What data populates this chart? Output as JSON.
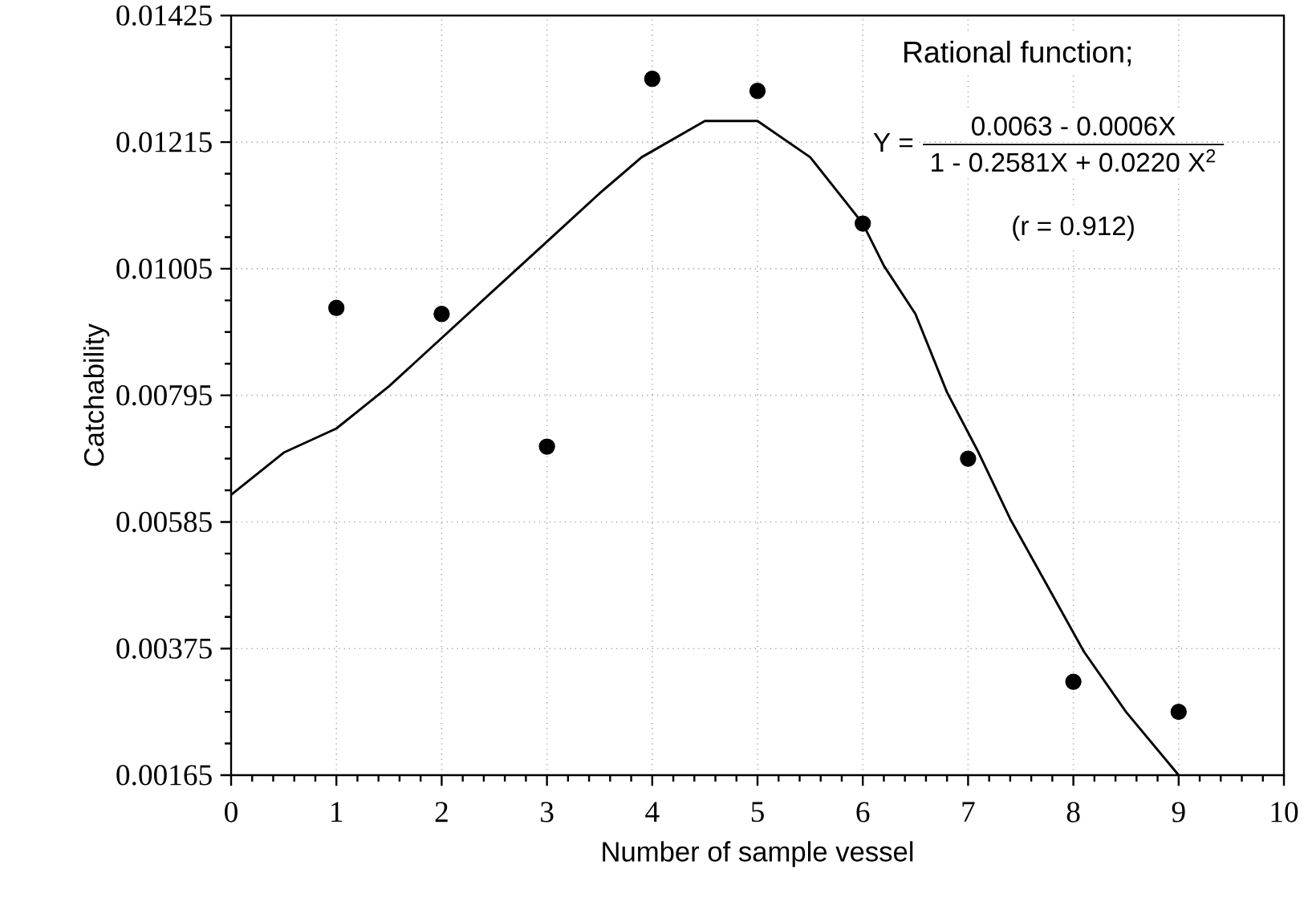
{
  "chart_data": {
    "type": "scatter",
    "xlabel": "Number of sample vessel",
    "ylabel": "Catchability",
    "xlim": [
      0,
      10
    ],
    "xticks": [
      0,
      1,
      2,
      3,
      4,
      5,
      6,
      7,
      8,
      9,
      10
    ],
    "ylim": [
      0.00165,
      0.01425
    ],
    "yticks": [
      0.00165,
      0.00375,
      0.00585,
      0.00795,
      0.01005,
      0.01215,
      0.01425
    ],
    "grid": true,
    "annotations": [
      "Rational function;",
      "Y =",
      "0.0063 - 0.0006X",
      "1 - 0.2581X + 0.0220 X$^{2}$",
      "(r = 0.912)"
    ],
    "series": [
      {
        "marker": "circle",
        "color": "#000000",
        "x": [
          1,
          2,
          3,
          4,
          5,
          6,
          7,
          8,
          9
        ],
        "values": [
          0.0094,
          0.0093,
          0.0071,
          0.0132,
          0.013,
          0.0108,
          0.0069,
          0.0032,
          0.0027
        ]
      },
      {
        "type": "line",
        "marker": "none",
        "line_style": "solid",
        "color": "#000000",
        "x": [
          0,
          0.5,
          1,
          1.5,
          2,
          2.5,
          3,
          3.5,
          3.9,
          4,
          4.5,
          4.8,
          5,
          5.5,
          6,
          6.2,
          6.5,
          6.8,
          7.1,
          7.4,
          7.75,
          8.1,
          8.5,
          9
        ],
        "values": [
          0.0063,
          0.007,
          0.0074,
          0.0081,
          0.0089,
          0.0097,
          0.0105,
          0.0113,
          0.0119,
          0.012,
          0.0125,
          0.0125,
          0.0125,
          0.0119,
          0.0108,
          0.0101,
          0.0093,
          0.008,
          0.007,
          0.0059,
          0.0048,
          0.0037,
          0.0027,
          0.00165
        ]
      }
    ]
  }
}
